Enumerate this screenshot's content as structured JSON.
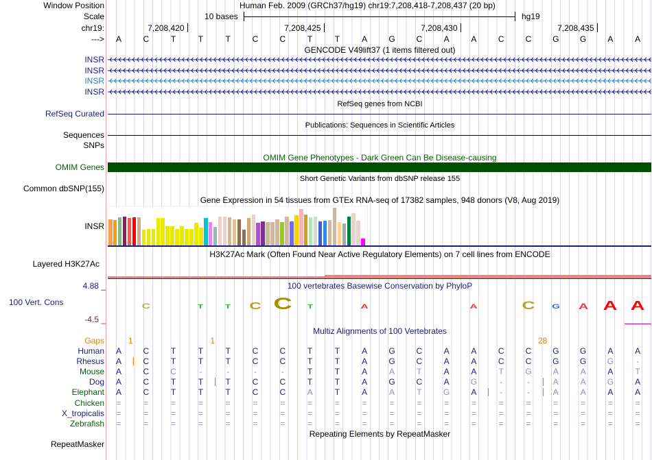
{
  "header": {
    "window_position_label": "Window Position",
    "title": "Human Feb. 2009 (GRCh37/hg19)   chr19:7,208,418-7,208,437 (20 bp)",
    "scale_label": "Scale",
    "scale_text": "10 bases",
    "scale_assembly": "hg19",
    "chrom_label": "chr19:",
    "strand_label": "--->",
    "ticks": [
      "7,208,420",
      "7,208,425",
      "7,208,430",
      "7,208,435"
    ]
  },
  "sequence": [
    "A",
    "C",
    "T",
    "T",
    "T",
    "C",
    "C",
    "T",
    "T",
    "A",
    "G",
    "C",
    "A",
    "A",
    "C",
    "C",
    "G",
    "G",
    "A",
    "A"
  ],
  "gencode": {
    "title": "GENCODE V49lift37 (1 items filtered out)",
    "genes": [
      {
        "name": "INSR",
        "color": "#1c1c8c"
      },
      {
        "name": "INSR",
        "color": "#1c1c8c"
      },
      {
        "name": "INSR",
        "color": "#2a80c8"
      },
      {
        "name": "INSR",
        "color": "#1c1c8c"
      }
    ]
  },
  "refseq": {
    "title": "RefSeq genes from NCBI",
    "label": "RefSeq Curated"
  },
  "publications": {
    "title": "Publications: Sequences in Scientific Articles",
    "label": "Sequences"
  },
  "snps": {
    "label": "SNPs"
  },
  "omim": {
    "title": "OMIM Gene Phenotypes - Dark Green Can Be Disease-causing",
    "label": "OMIM Genes",
    "color": "#005000"
  },
  "dbsnp": {
    "title": "Short Genetic Variants from dbSNP release 155",
    "label": "Common dbSNP(155)"
  },
  "gtex": {
    "title": "Gene Expression in 54 tissues from GTEx RNA-seq of 17382 samples, 948 donors (V8, Aug 2019)",
    "label": "INSR",
    "values": [
      40,
      39,
      43,
      45,
      42,
      43,
      43,
      25,
      26,
      26,
      42,
      42,
      30,
      30,
      26,
      30,
      26,
      26,
      35,
      28,
      42,
      36,
      29,
      44,
      45,
      43,
      40,
      40,
      25,
      42,
      48,
      35,
      37,
      36,
      36,
      40,
      36,
      44,
      37,
      47,
      56,
      48,
      43,
      44,
      37,
      38,
      39,
      58,
      36,
      34,
      44,
      50,
      38,
      11
    ],
    "colors": [
      "#f8a050",
      "#f0a010",
      "#88b888",
      "#8c1c5c",
      "#e86050",
      "#ff0000",
      "#c8b098",
      "#e8e800",
      "#e8e800",
      "#e8e800",
      "#e8e800",
      "#e8e800",
      "#e8e800",
      "#e8e800",
      "#e8e800",
      "#e8e800",
      "#e8e800",
      "#e8e800",
      "#e8e800",
      "#e8e800",
      "#00c8c8",
      "#ee82ee",
      "#98b8c8",
      "#ecd0cc",
      "#ecd0cc",
      "#d0b8a0",
      "#e8c088",
      "#8c7050",
      "#8c7050",
      "#d0a878",
      "#ecd0cc",
      "#b050d0",
      "#803090",
      "#d0b8a0",
      "#d0b8a0",
      "#d0b8a0",
      "#98c828",
      "#d0b8a0",
      "#7868e8",
      "#ffd000",
      "#ffb0c0",
      "#d0a020",
      "#b0e8b0",
      "#d8d8d8",
      "#4060d0",
      "#2090ff",
      "#d0b8a0",
      "#d0b8a0",
      "#ffd090",
      "#a8a8a8",
      "#008040",
      "#ecd0cc",
      "#ecd0cc",
      "#ff00ff"
    ]
  },
  "h3k27ac": {
    "title": "H3K27Ac Mark (Often Found Near Active Regulatory Elements) on 7 cell lines from ENCODE",
    "label": "Layered H3K27Ac"
  },
  "phylop": {
    "title": "100 vertebrates Basewise Conservation by PhyloP",
    "label": "100 Vert. Cons",
    "max": "4.88 _",
    "min": "-4.5 _",
    "logo": [
      {
        "pos": 1,
        "letter": "C",
        "color": "#b8b040",
        "scale": 0.5
      },
      {
        "pos": 3,
        "letter": "T",
        "color": "#20c020",
        "scale": 0.3
      },
      {
        "pos": 4,
        "letter": "T",
        "color": "#20c020",
        "scale": 0.3
      },
      {
        "pos": 5,
        "letter": "C",
        "color": "#b8a020",
        "scale": 0.8
      },
      {
        "pos": 6,
        "letter": "C",
        "color": "#a89000",
        "scale": 1.4
      },
      {
        "pos": 7,
        "letter": "T",
        "color": "#20c020",
        "scale": 0.3
      },
      {
        "pos": 9,
        "letter": "A",
        "color": "#e04040",
        "scale": 0.4
      },
      {
        "pos": 13,
        "letter": "A",
        "color": "#e04040",
        "scale": 0.4
      },
      {
        "pos": 15,
        "letter": "C",
        "color": "#b8a020",
        "scale": 0.9
      },
      {
        "pos": 16,
        "letter": "G",
        "color": "#4060e0",
        "scale": 0.4
      },
      {
        "pos": 17,
        "letter": "A",
        "color": "#e04040",
        "scale": 0.6
      },
      {
        "pos": 18,
        "letter": "A",
        "color": "#ff0000",
        "scale": 1.0
      },
      {
        "pos": 19,
        "letter": "A",
        "color": "#ff0000",
        "scale": 1.0
      }
    ]
  },
  "multiz": {
    "title": "Multiz Alignments of 100 Vertebrates",
    "gaps_label": "Gaps",
    "gaps": [
      {
        "after": 0,
        "text": "1"
      },
      {
        "after": 3,
        "text": "1"
      },
      {
        "after": 15,
        "text": "28"
      }
    ],
    "species": [
      {
        "name": "Human",
        "color": "#1c1c7c",
        "seq": "ACTTTCCTTAGCAACCGGAA",
        "dim": "00000000000000000000",
        "ins": []
      },
      {
        "name": "Rhesus",
        "color": "#1c1c7c",
        "seq": "ACTTTCCTTAGCAACCGGG-",
        "dim": "00000000000000000011",
        "ins": [
          0
        ]
      },
      {
        "name": "Mouse",
        "color": "#0a5c0a",
        "seq": "ACC----TTAATAATGAAAT",
        "dim": "00111110001100111101",
        "ins": []
      },
      {
        "name": "Dog",
        "color": "#1c1c7c",
        "seq": "ACTTTCCTTAGCAG--AAGA",
        "dim": "00000000000001111110",
        "ins": [
          3,
          15
        ]
      },
      {
        "name": "Elephant",
        "color": "#0a5c0a",
        "seq": "ACTTTCCATAATGA--AAAA",
        "dim": "00000001001110111100",
        "ins": [
          13,
          15
        ]
      },
      {
        "name": "Chicken",
        "color": "#0a5c0a",
        "seq": "====================",
        "dim": "11111111111111111111",
        "ins": []
      },
      {
        "name": "X_tropicalis",
        "color": "#1c1c7c",
        "seq": "====================",
        "dim": "11111111111111111111",
        "ins": []
      },
      {
        "name": "Zebrafish",
        "color": "#0a5c0a",
        "seq": "====================",
        "dim": "11111111111111111111",
        "ins": []
      }
    ]
  },
  "repeatmasker": {
    "title": "Repeating Elements by RepeatMasker",
    "label": "RepeatMasker"
  }
}
